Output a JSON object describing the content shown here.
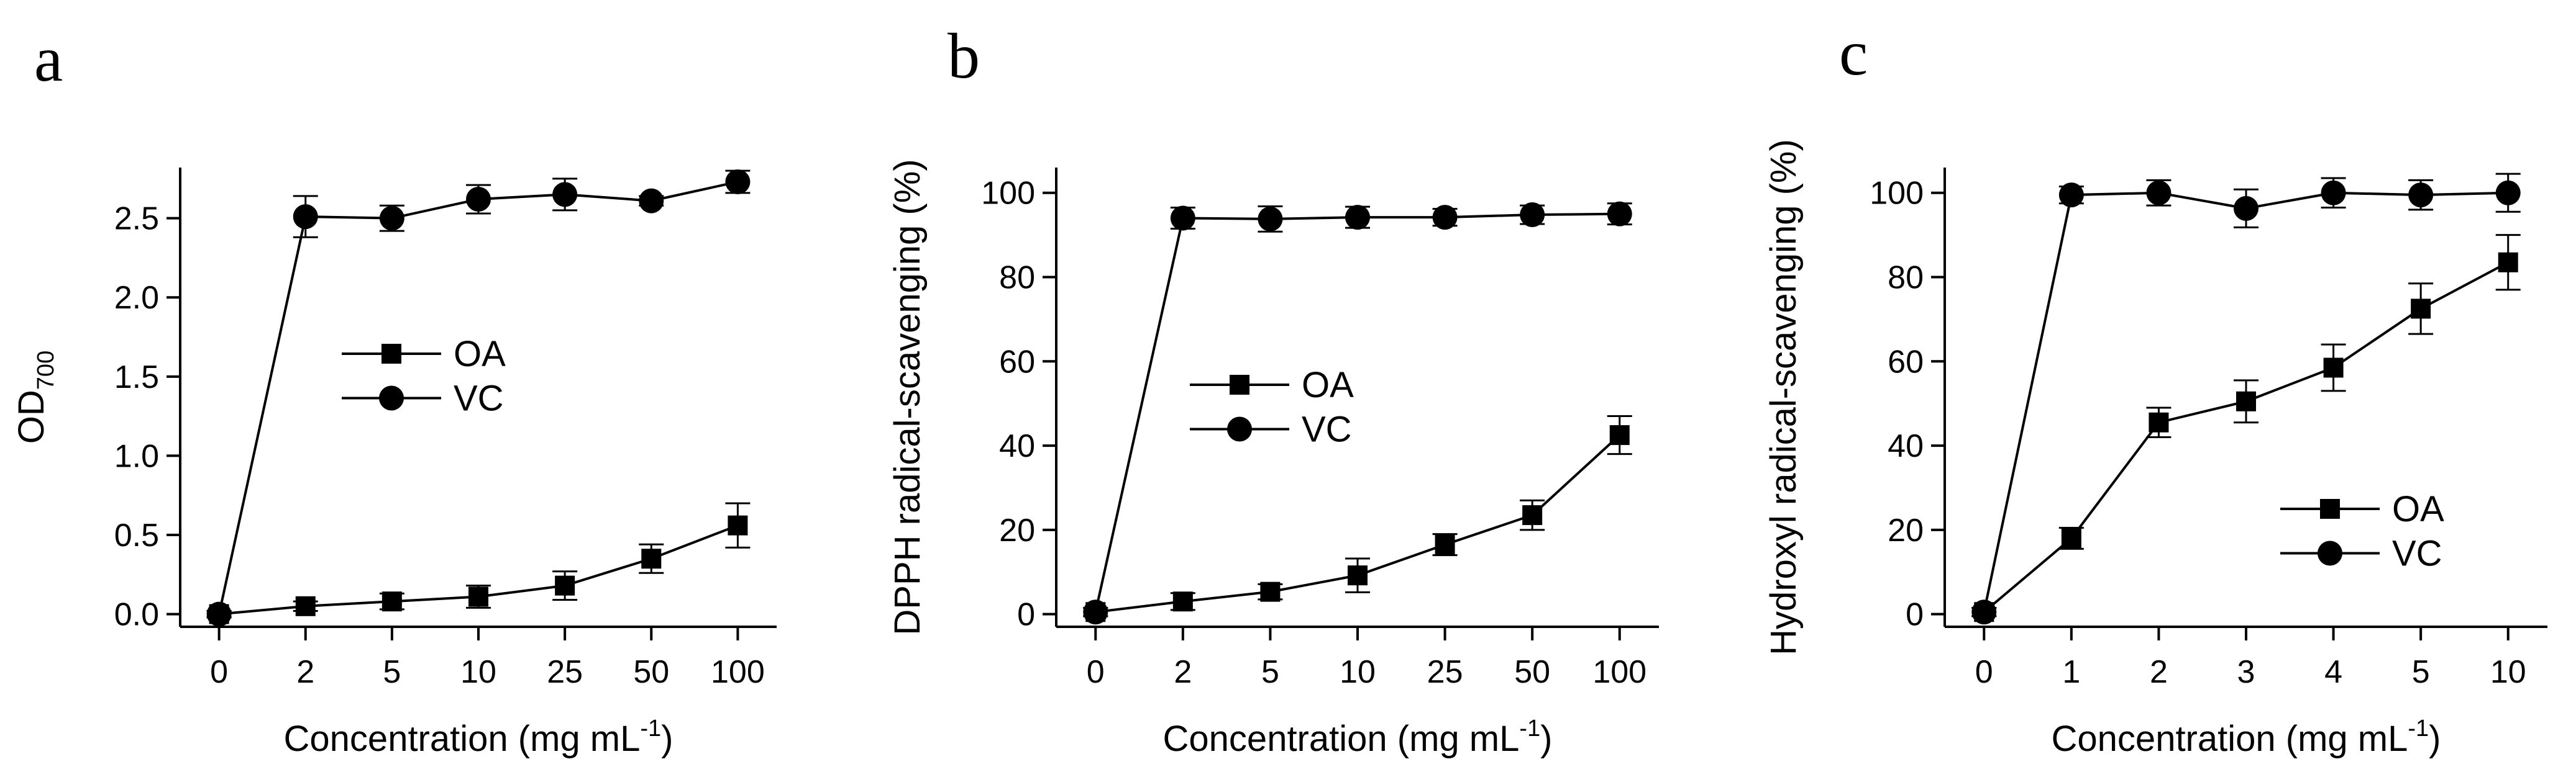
{
  "chart_data": [
    {
      "type": "line",
      "panel_label": "a",
      "xlabel": "Concentration (mg mL",
      "xlabel_sup": "-1",
      "xlabel_end": ")",
      "ylabel": "OD",
      "ylabel_sub": "700",
      "categories": [
        "0",
        "2",
        "5",
        "10",
        "25",
        "50",
        "100"
      ],
      "ylim": [
        -0.08,
        2.82
      ],
      "yticks": [
        "0.0",
        "0.5",
        "1.0",
        "1.5",
        "2.0",
        "2.5"
      ],
      "legend_position": "center",
      "series": [
        {
          "name": "OA",
          "marker": "square",
          "values": [
            0.0,
            0.05,
            0.08,
            0.11,
            0.18,
            0.35,
            0.56
          ],
          "errors": [
            0.02,
            0.03,
            0.05,
            0.07,
            0.09,
            0.09,
            0.14
          ]
        },
        {
          "name": "VC",
          "marker": "circle",
          "values": [
            0.0,
            2.51,
            2.5,
            2.62,
            2.65,
            2.61,
            2.73
          ],
          "errors": [
            0.02,
            0.13,
            0.08,
            0.09,
            0.1,
            0.03,
            0.07
          ]
        }
      ]
    },
    {
      "type": "line",
      "panel_label": "b",
      "xlabel": "Concentration (mg mL",
      "xlabel_sup": "-1",
      "xlabel_end": ")",
      "ylabel": "DPPH radical-scavenging (%)",
      "ylabel_sub": "",
      "categories": [
        "0",
        "2",
        "5",
        "10",
        "25",
        "50",
        "100"
      ],
      "ylim": [
        -3,
        106
      ],
      "yticks": [
        "0",
        "20",
        "40",
        "60",
        "80",
        "100"
      ],
      "legend_position": "center",
      "series": [
        {
          "name": "OA",
          "marker": "square",
          "values": [
            0.5,
            3,
            5.3,
            9.2,
            16.5,
            23.5,
            42.5
          ],
          "errors": [
            1,
            2,
            1.8,
            4,
            2.5,
            3.5,
            4.5
          ]
        },
        {
          "name": "VC",
          "marker": "circle",
          "values": [
            0.5,
            94,
            93.8,
            94.2,
            94.2,
            94.8,
            95
          ],
          "errors": [
            1,
            2.5,
            3,
            2.5,
            2,
            2.2,
            2.5
          ]
        }
      ]
    },
    {
      "type": "line",
      "panel_label": "c",
      "xlabel": "Concentration (mg mL",
      "xlabel_sup": "-1",
      "xlabel_end": ")",
      "ylabel": "Hydroxyl radical-scavenging (%)",
      "ylabel_sub": "",
      "categories": [
        "0",
        "1",
        "2",
        "3",
        "4",
        "5",
        "10"
      ],
      "ylim": [
        -3,
        106
      ],
      "yticks": [
        "0",
        "20",
        "40",
        "60",
        "80",
        "100"
      ],
      "legend_position": "bottom-right",
      "series": [
        {
          "name": "OA",
          "marker": "square",
          "values": [
            0.5,
            18,
            45.5,
            50.5,
            58.5,
            72.5,
            83.5
          ],
          "errors": [
            1,
            2.5,
            3.5,
            5,
            5.5,
            6,
            6.5
          ]
        },
        {
          "name": "VC",
          "marker": "circle",
          "values": [
            0.5,
            99.5,
            100,
            96.3,
            100,
            99.5,
            100
          ],
          "errors": [
            1,
            2,
            3,
            4.5,
            3.5,
            3.5,
            4.5
          ]
        }
      ]
    }
  ]
}
